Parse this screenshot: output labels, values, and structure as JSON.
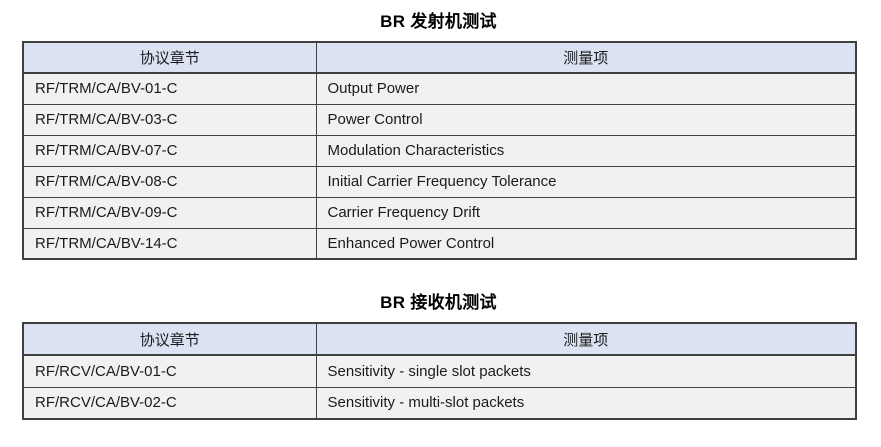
{
  "colors": {
    "header_bg": "#dbe3f3",
    "row_bg": "#f1f1f1",
    "border": "#404040",
    "text": "#1b1b1b",
    "title": "#000000"
  },
  "tables": [
    {
      "title": "BR 发射机测试",
      "columns": [
        "协议章节",
        "测量项"
      ],
      "rows": [
        [
          "RF/TRM/CA/BV-01-C",
          "Output Power"
        ],
        [
          "RF/TRM/CA/BV-03-C",
          "Power Control"
        ],
        [
          "RF/TRM/CA/BV-07-C",
          "Modulation Characteristics"
        ],
        [
          "RF/TRM/CA/BV-08-C",
          "Initial Carrier Frequency Tolerance"
        ],
        [
          "RF/TRM/CA/BV-09-C",
          "Carrier Frequency Drift"
        ],
        [
          "RF/TRM/CA/BV-14-C",
          "Enhanced Power Control"
        ]
      ]
    },
    {
      "title": "BR 接收机测试",
      "columns": [
        "协议章节",
        "测量项"
      ],
      "rows": [
        [
          "RF/RCV/CA/BV-01-C",
          "Sensitivity - single slot packets"
        ],
        [
          "RF/RCV/CA/BV-02-C",
          "Sensitivity - multi-slot packets"
        ]
      ]
    }
  ]
}
